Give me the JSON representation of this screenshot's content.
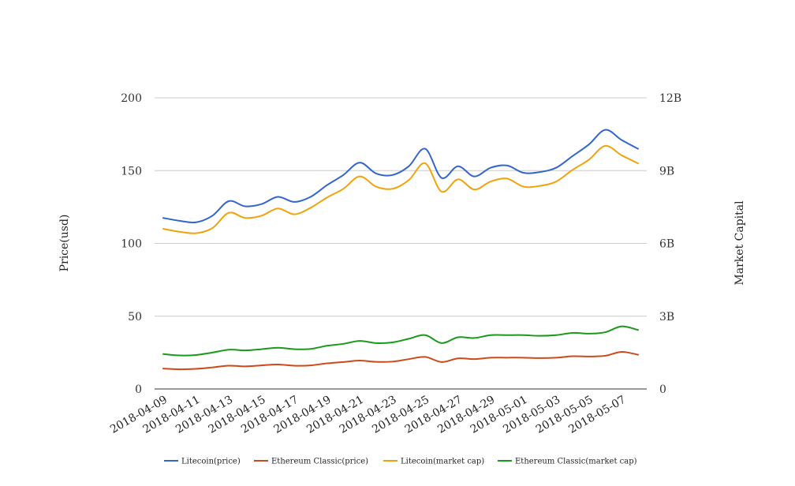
{
  "chart_data": {
    "type": "line",
    "x": [
      "2018-04-09",
      "2018-04-10",
      "2018-04-11",
      "2018-04-12",
      "2018-04-13",
      "2018-04-14",
      "2018-04-15",
      "2018-04-16",
      "2018-04-17",
      "2018-04-18",
      "2018-04-19",
      "2018-04-20",
      "2018-04-21",
      "2018-04-22",
      "2018-04-23",
      "2018-04-24",
      "2018-04-25",
      "2018-04-26",
      "2018-04-27",
      "2018-04-28",
      "2018-04-29",
      "2018-04-30",
      "2018-05-01",
      "2018-05-02",
      "2018-05-03",
      "2018-05-04",
      "2018-05-05",
      "2018-05-06",
      "2018-05-07",
      "2018-05-08"
    ],
    "x_tick_labels": [
      "2018-04-09",
      "2018-04-11",
      "2018-04-13",
      "2018-04-15",
      "2018-04-17",
      "2018-04-19",
      "2018-04-21",
      "2018-04-23",
      "2018-04-25",
      "2018-04-27",
      "2018-04-29",
      "2018-05-01",
      "2018-05-03",
      "2018-05-05",
      "2018-05-07"
    ],
    "y_left": {
      "label": "Price(usd)",
      "min": 0,
      "max": 200,
      "ticks": [
        0,
        50,
        100,
        150,
        200
      ],
      "tick_labels": [
        "0",
        "50",
        "100",
        "150",
        "200"
      ]
    },
    "y_right": {
      "label": "Market Capital",
      "min": 0,
      "max": 12000000000,
      "ticks": [
        0,
        3000000000,
        6000000000,
        9000000000,
        12000000000
      ],
      "tick_labels": [
        "0",
        "3B",
        "6B",
        "9B",
        "12B"
      ]
    },
    "grid": "horizontal",
    "legend_position": "bottom",
    "series": [
      {
        "name": "Litecoin(price)",
        "axis": "left",
        "color": "#3366cc",
        "values": [
          117.5,
          115.5,
          114.5,
          119,
          129,
          125.5,
          127,
          132,
          128.5,
          132,
          140,
          147,
          155.5,
          148,
          147,
          153,
          165,
          145,
          153,
          146,
          152,
          153.5,
          148.5,
          149,
          152,
          160,
          168,
          178,
          171,
          165
        ]
      },
      {
        "name": "Ethereum Classic(price)",
        "axis": "left",
        "color": "#cc4a1a",
        "values": [
          14,
          13.5,
          13.8,
          14.8,
          16,
          15.5,
          16.2,
          16.8,
          16,
          16.2,
          17.6,
          18.5,
          19.5,
          18.6,
          18.8,
          20.5,
          22,
          18.5,
          21,
          20.5,
          21.5,
          21.5,
          21.5,
          21.2,
          21.5,
          22.5,
          22.3,
          22.8,
          25.5,
          23.5
        ]
      },
      {
        "name": "Litecoin(market cap)",
        "axis": "right",
        "color": "#f0a30a",
        "values": [
          6600000000,
          6480000000,
          6420000000,
          6630000000,
          7260000000,
          7050000000,
          7140000000,
          7440000000,
          7200000000,
          7470000000,
          7890000000,
          8250000000,
          8760000000,
          8340000000,
          8250000000,
          8610000000,
          9300000000,
          8130000000,
          8640000000,
          8220000000,
          8550000000,
          8670000000,
          8340000000,
          8370000000,
          8550000000,
          9030000000,
          9450000000,
          10020000000,
          9630000000,
          9300000000
        ]
      },
      {
        "name": "Ethereum Classic(market cap)",
        "axis": "right",
        "color": "#1a9a1a",
        "values": [
          1440000000,
          1380000000,
          1400000000,
          1500000000,
          1620000000,
          1590000000,
          1640000000,
          1700000000,
          1640000000,
          1650000000,
          1780000000,
          1860000000,
          1980000000,
          1890000000,
          1920000000,
          2070000000,
          2220000000,
          1890000000,
          2130000000,
          2100000000,
          2220000000,
          2220000000,
          2220000000,
          2190000000,
          2220000000,
          2310000000,
          2280000000,
          2340000000,
          2580000000,
          2430000000
        ]
      }
    ]
  }
}
